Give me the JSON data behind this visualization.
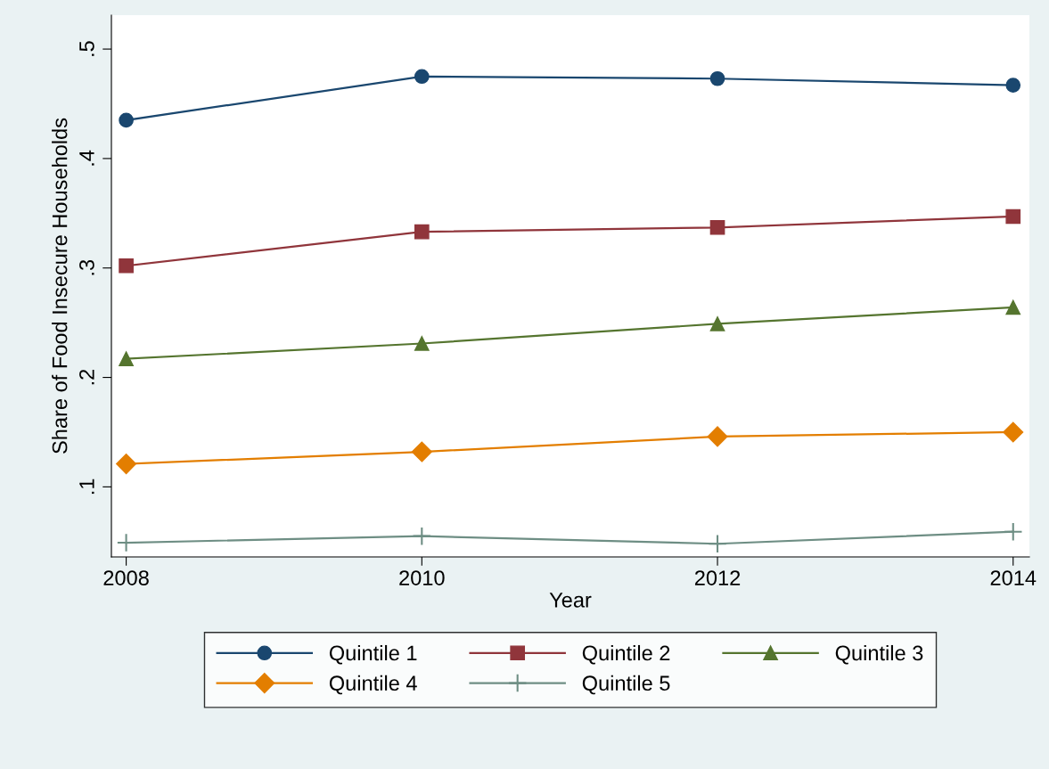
{
  "chart_data": {
    "type": "line",
    "xlabel": "Year",
    "ylabel": "Share of Food Insecure Households",
    "x": [
      2008,
      2010,
      2012,
      2014
    ],
    "series": [
      {
        "name": "Quintile 1",
        "color": "#1a476f",
        "marker": "circle",
        "values": [
          0.435,
          0.475,
          0.473,
          0.467
        ]
      },
      {
        "name": "Quintile 2",
        "color": "#90353b",
        "marker": "square",
        "values": [
          0.302,
          0.333,
          0.337,
          0.347
        ]
      },
      {
        "name": "Quintile 3",
        "color": "#55752f",
        "marker": "triangle",
        "values": [
          0.217,
          0.231,
          0.249,
          0.264
        ]
      },
      {
        "name": "Quintile 4",
        "color": "#e37e00",
        "marker": "diamond",
        "values": [
          0.121,
          0.132,
          0.146,
          0.15
        ]
      },
      {
        "name": "Quintile 5",
        "color": "#6e8e84",
        "marker": "cross",
        "values": [
          0.049,
          0.055,
          0.048,
          0.059
        ]
      }
    ],
    "xlim": [
      2007.9,
      2014.11
    ],
    "xticks": [
      2008,
      2010,
      2012,
      2014
    ],
    "ylim": [
      0.036,
      0.531
    ],
    "yticks": [
      {
        "value": 0.1,
        "label": ".1"
      },
      {
        "value": 0.2,
        "label": ".2"
      },
      {
        "value": 0.3,
        "label": ".3"
      },
      {
        "value": 0.4,
        "label": ".4"
      },
      {
        "value": 0.5,
        "label": ".5"
      }
    ],
    "grid": false,
    "legend": "bottom",
    "line_style": "solid"
  }
}
